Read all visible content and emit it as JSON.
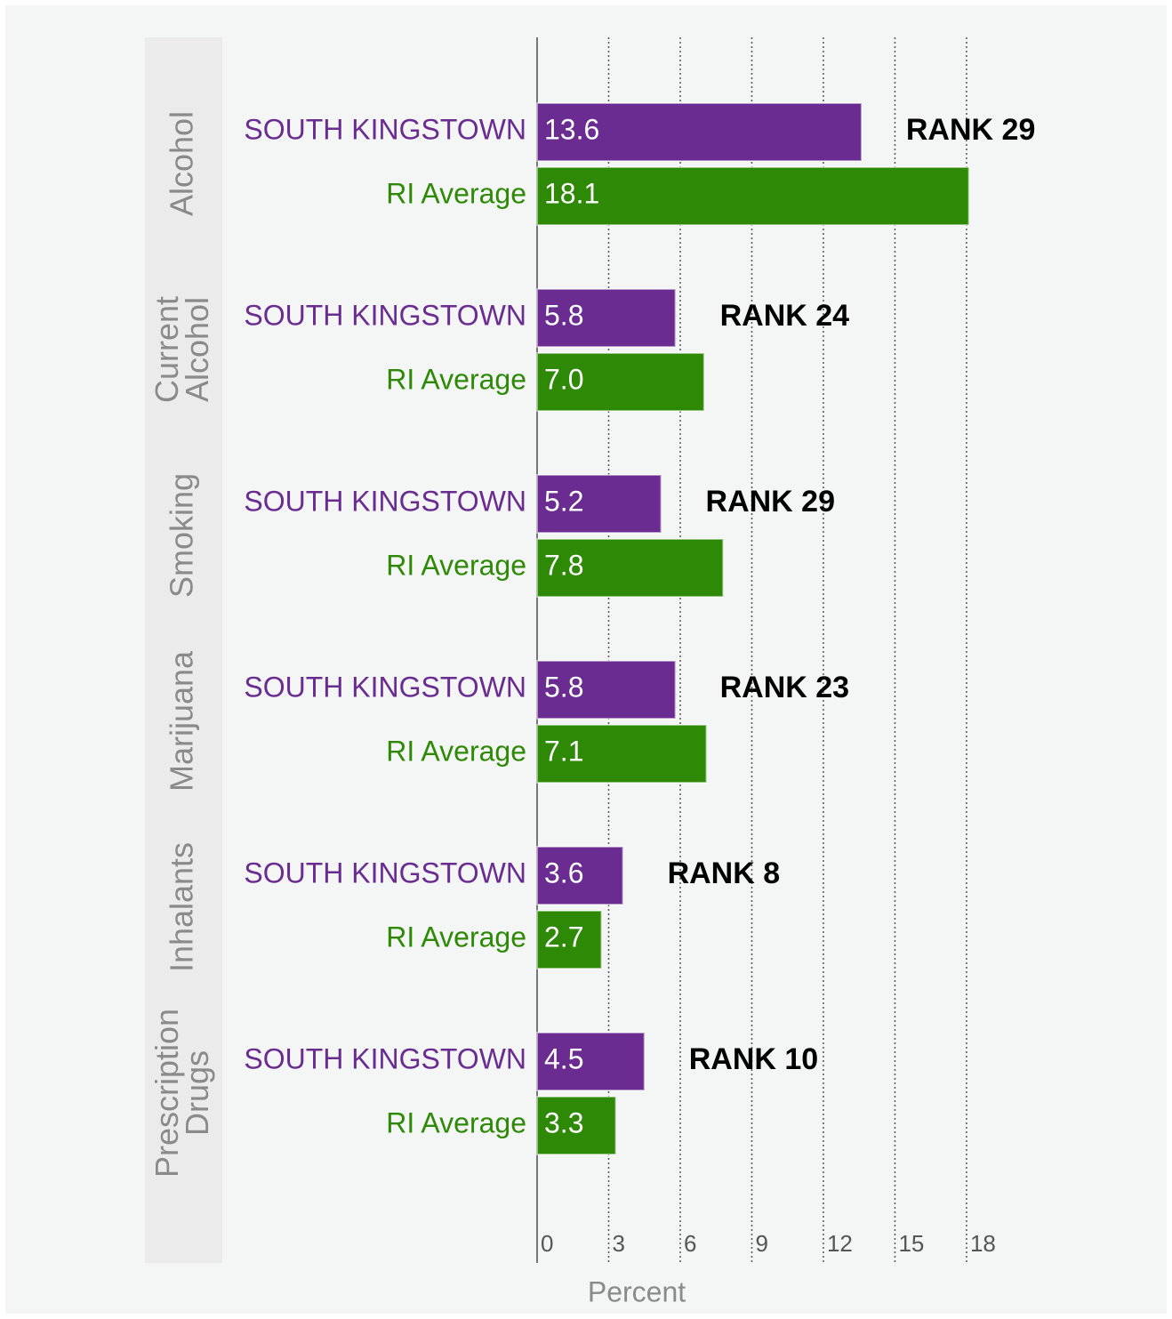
{
  "chart_data": {
    "type": "grouped-barh",
    "categories": [
      "Alcohol",
      "Current Alcohol",
      "Smoking",
      "Marijuana",
      "Inhalants",
      "Prescription Drugs"
    ],
    "series": [
      {
        "name": "SOUTH KINGSTOWN",
        "color": "#6a2c91",
        "values": [
          13.6,
          5.8,
          5.2,
          5.8,
          3.6,
          4.5
        ]
      },
      {
        "name": "RI Average",
        "color": "#2e8a06",
        "values": [
          18.1,
          7.0,
          7.8,
          7.1,
          2.7,
          3.3
        ],
        "value_labels": [
          "18.1",
          "7.0",
          "7.8",
          "7.1",
          "2.7",
          "3.3"
        ]
      }
    ],
    "annotations": [
      "RANK 29",
      "RANK 24",
      "RANK 29",
      "RANK 23",
      "RANK 8",
      "RANK 10"
    ],
    "x_label": "Percent",
    "xlim": [
      0,
      20
    ],
    "xticks": [
      0,
      3,
      6,
      9,
      12,
      15,
      18
    ],
    "grid": true
  }
}
